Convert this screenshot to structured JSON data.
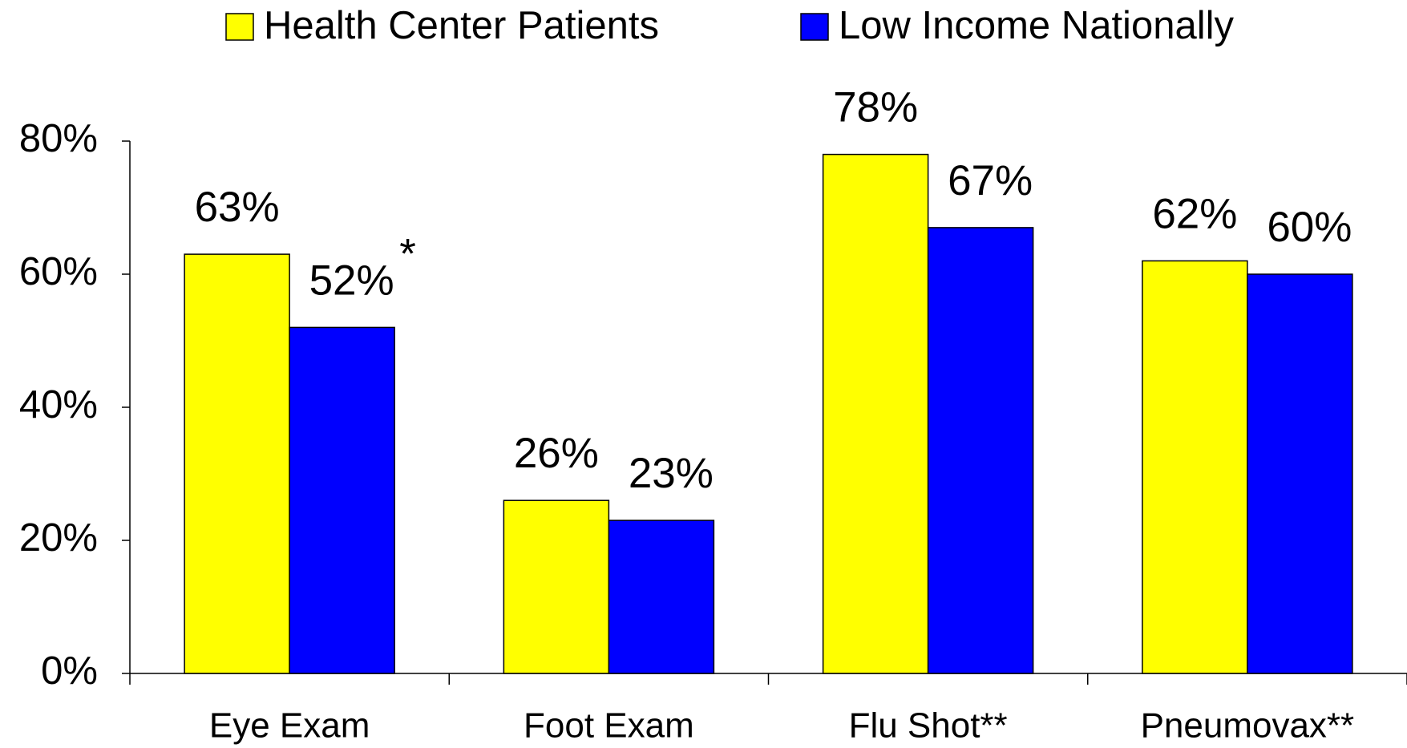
{
  "chart_data": {
    "type": "bar",
    "categories": [
      "Eye Exam",
      "Foot Exam",
      "Flu Shot**",
      "Pneumovax**"
    ],
    "series": [
      {
        "name": "Health Center Patients",
        "color": "#ffff00",
        "values": [
          63,
          26,
          78,
          62
        ],
        "value_labels": [
          "63%",
          "26%",
          "78%",
          "62%"
        ]
      },
      {
        "name": "Low Income Nationally",
        "color": "#0000ff",
        "values": [
          52,
          23,
          67,
          60
        ],
        "value_labels": [
          "52%",
          "23%",
          "67%",
          "60%"
        ]
      }
    ],
    "annotation": "*",
    "ylim": [
      0,
      80
    ],
    "yticks": [
      {
        "value": 0,
        "label": "0%"
      },
      {
        "value": 20,
        "label": "20%"
      },
      {
        "value": 40,
        "label": "40%"
      },
      {
        "value": 60,
        "label": "60%"
      },
      {
        "value": 80,
        "label": "80%"
      }
    ],
    "grid": false,
    "legend": "top"
  }
}
